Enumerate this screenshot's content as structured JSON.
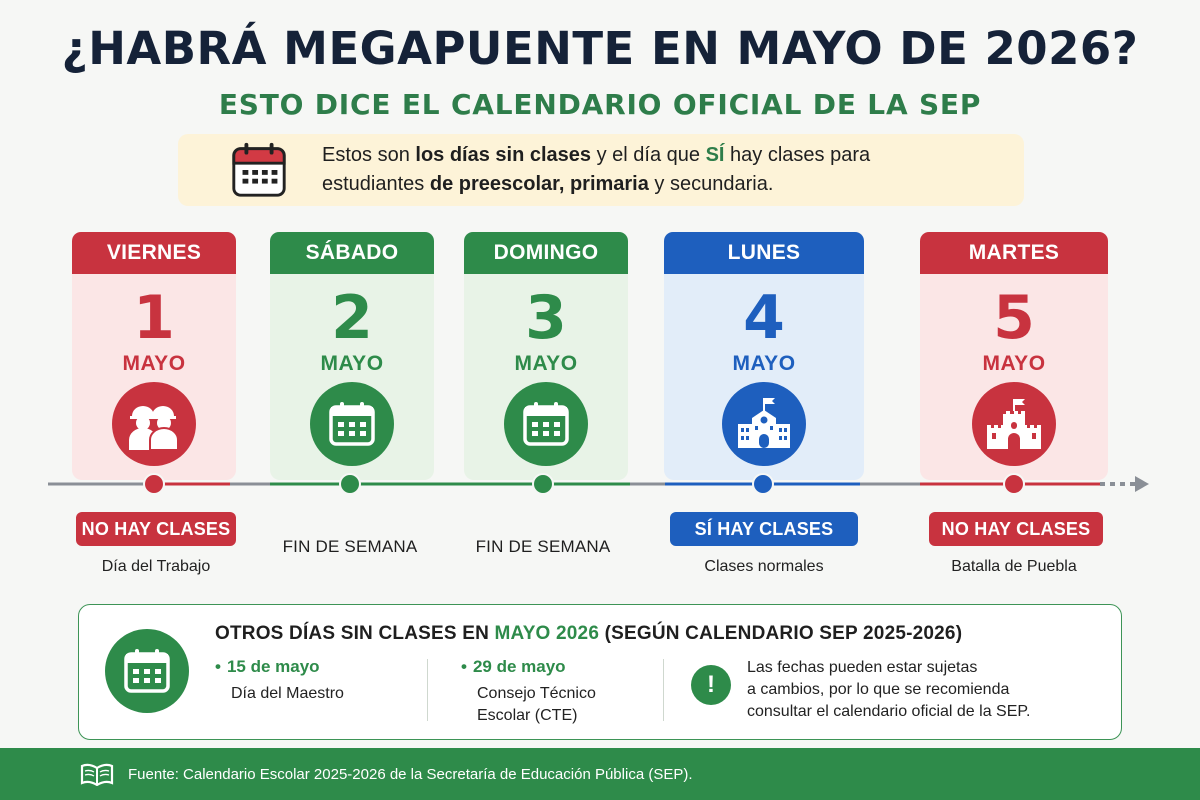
{
  "header": {
    "title": "¿HABRÁ MEGAPUENTE EN MAYO DE 2026?",
    "subtitle": "ESTO DICE EL CALENDARIO OFICIAL DE LA SEP"
  },
  "intro": {
    "icon": "calendar-icon",
    "part1": "Estos son ",
    "part2": "los días sin clases",
    "part3": " y el día que ",
    "part4": "SÍ",
    "part5": " hay clases para",
    "part6": "estudiantes ",
    "part7": "de preescolar, primaria",
    "part8": " y secundaria."
  },
  "days": [
    {
      "weekday": "VIERNES",
      "number": "1",
      "month": "MAYO",
      "icon": "workers-icon",
      "status": "NO HAY CLASES",
      "reason": "Día del Trabajo",
      "color": "#c8333f"
    },
    {
      "weekday": "SÁBADO",
      "number": "2",
      "month": "MAYO",
      "icon": "calendar-icon",
      "status": "FIN DE SEMANA",
      "reason": "",
      "color": "#2e8b4a"
    },
    {
      "weekday": "DOMINGO",
      "number": "3",
      "month": "MAYO",
      "icon": "calendar-icon",
      "status": "FIN DE SEMANA",
      "reason": "",
      "color": "#2e8b4a"
    },
    {
      "weekday": "LUNES",
      "number": "4",
      "month": "MAYO",
      "icon": "school-icon",
      "status": "SÍ HAY CLASES",
      "reason": "Clases normales",
      "color": "#1e5fbe"
    },
    {
      "weekday": "MARTES",
      "number": "5",
      "month": "MAYO",
      "icon": "castle-icon",
      "status": "NO HAY CLASES",
      "reason": "Batalla de Puebla",
      "color": "#c8333f"
    }
  ],
  "others": {
    "title_part1": "OTROS DÍAS SIN CLASES EN ",
    "title_highlight": "MAYO 2026",
    "title_part2": " (SEGÚN CALENDARIO SEP 2025-2026)",
    "items": [
      {
        "date": "15 de mayo",
        "desc_line1": "Día del Maestro",
        "desc_line2": ""
      },
      {
        "date": "29 de mayo",
        "desc_line1": "Consejo Técnico",
        "desc_line2": "Escolar (CTE)"
      }
    ],
    "warning_symbol": "!",
    "warning_line1": "Las fechas pueden estar sujetas",
    "warning_line2": "a cambios, por lo que se recomienda",
    "warning_line3": "consultar el calendario oficial de la SEP."
  },
  "footer": {
    "icon": "book-icon",
    "text": "Fuente: Calendario Escolar 2025-2026 de la Secretaría de Educación Pública (SEP)."
  }
}
